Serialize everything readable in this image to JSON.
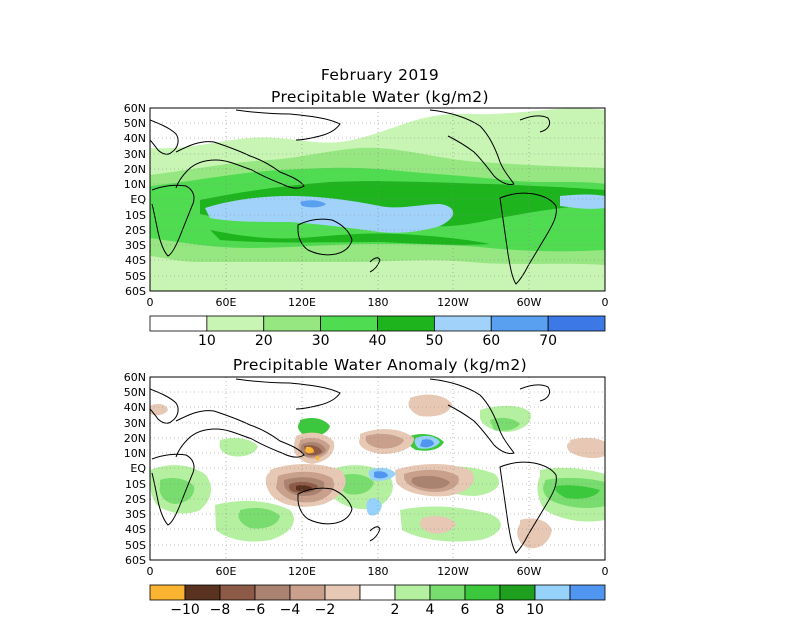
{
  "figure": {
    "title": "February 2019",
    "panels": [
      {
        "id": "pw",
        "subtitle": "Precipitable Water (kg/m2)",
        "lat_labels": [
          "60N",
          "50N",
          "40N",
          "30N",
          "20N",
          "10N",
          "EQ",
          "10S",
          "20S",
          "30S",
          "40S",
          "50S",
          "60S"
        ],
        "lon_labels": [
          "0",
          "60E",
          "120E",
          "180",
          "120W",
          "60W",
          "0"
        ],
        "colorbar": {
          "colors": [
            "#ffffff",
            "#c8f5b4",
            "#96e682",
            "#50dc50",
            "#1eb41e",
            "#a0d2fa",
            "#5aa0f0",
            "#3c78e6"
          ],
          "labels": [
            "10",
            "20",
            "30",
            "40",
            "50",
            "60",
            "70"
          ]
        }
      },
      {
        "id": "anom",
        "subtitle": "Precipitable Water Anomaly (kg/m2)",
        "lat_labels": [
          "60N",
          "50N",
          "40N",
          "30N",
          "20N",
          "10N",
          "EQ",
          "10S",
          "20S",
          "30S",
          "40S",
          "50S",
          "60S"
        ],
        "lon_labels": [
          "0",
          "60E",
          "120E",
          "180",
          "120W",
          "60W",
          "0"
        ],
        "colorbar": {
          "colors": [
            "#fab432",
            "#5a3220",
            "#8c5a46",
            "#aa8270",
            "#c8a08c",
            "#e6c8b4",
            "#ffffff",
            "#b4f0a0",
            "#78dc6e",
            "#3cc83c",
            "#1ea01e",
            "#96d2fa",
            "#5096f0"
          ],
          "labels": [
            "−10",
            "−8",
            "−6",
            "−4",
            "−2",
            "2",
            "4",
            "6",
            "8",
            "10"
          ]
        }
      }
    ]
  },
  "colors": {
    "pw": {
      "v10_20": "#c8f5b4",
      "v20_30": "#96e682",
      "v30_40": "#50dc50",
      "v40_50": "#1eb41e",
      "v50_60": "#a0d2fa",
      "v60_70": "#5aa0f0"
    },
    "anom": {
      "neg10": "#fab432",
      "neg8": "#5a3220",
      "neg6": "#8c5a46",
      "neg4": "#aa8270",
      "neg2": "#c8a08c",
      "pos2": "#b4f0a0",
      "pos4": "#78dc6e",
      "pos6": "#3cc83c",
      "pos10": "#96d2fa",
      "pos12": "#5096f0"
    }
  }
}
